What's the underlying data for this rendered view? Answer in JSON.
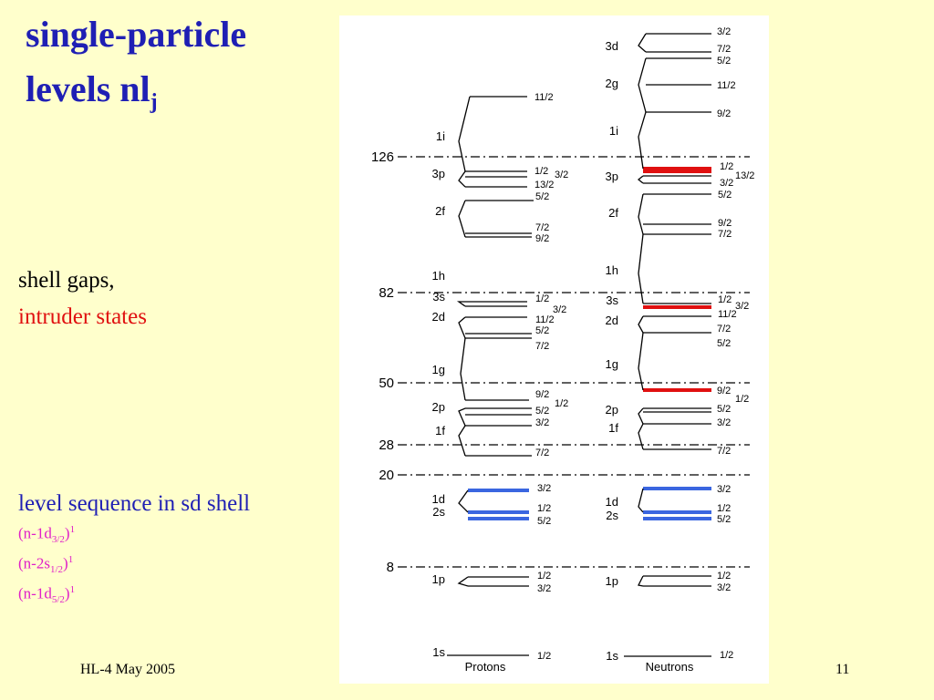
{
  "title": {
    "line1": "single-particle",
    "line2": "levels nl",
    "line2_sub": "j"
  },
  "notes": {
    "shell_gaps": "shell gaps,",
    "intruder": "intruder states",
    "sd_sequence": "level sequence in sd shell"
  },
  "configurations": [
    {
      "prefix": "(n-1d",
      "sub": "3/2",
      "suffix": ")",
      "sup": "1"
    },
    {
      "prefix": "(n-2s",
      "sub": "1/2",
      "suffix": ")",
      "sup": "1"
    },
    {
      "prefix": "(n-1d",
      "sub": "5/2",
      "suffix": ")",
      "sup": "1"
    }
  ],
  "footer": {
    "left": "HL-4  May  2005",
    "page": "11"
  },
  "diagram": {
    "columns": {
      "protons": "Protons",
      "neutrons": "Neutrons"
    },
    "magic_numbers": [
      "126",
      "82",
      "50",
      "28",
      "20",
      "8"
    ],
    "protons": {
      "orbitals": [
        "3p",
        "2f",
        "1i",
        "1h",
        "3s",
        "2d",
        "1g",
        "2p",
        "1f",
        "1d",
        "2s",
        "1p",
        "1s"
      ],
      "j_labels": [
        "11/2",
        "1/2",
        "3/2",
        "13/2",
        "5/2",
        "7/2",
        "9/2",
        "1/2",
        "3/2",
        "11/2",
        "5/2",
        "7/2",
        "9/2",
        "1/2",
        "5/2",
        "3/2",
        "7/2",
        "3/2",
        "1/2",
        "5/2",
        "1/2",
        "3/2",
        "1/2"
      ]
    },
    "neutrons": {
      "orbitals": [
        "3d",
        "2g",
        "1i",
        "3p",
        "2f",
        "1h",
        "3s",
        "2d",
        "1g",
        "2p",
        "1f",
        "1d",
        "2s",
        "1p",
        "1s"
      ],
      "j_labels": [
        "3/2",
        "7/2",
        "5/2",
        "11/2",
        "9/2",
        "1/2",
        "13/2",
        "3/2",
        "5/2",
        "9/2",
        "7/2",
        "1/2",
        "3/2",
        "11/2",
        "7/2",
        "5/2",
        "9/2",
        "1/2",
        "5/2",
        "3/2",
        "7/2",
        "3/2",
        "1/2",
        "5/2",
        "1/2",
        "3/2",
        "1/2"
      ]
    },
    "colors": {
      "intruder": "#e01010",
      "sd_shell": "#3a66e0",
      "line": "#000000"
    }
  }
}
